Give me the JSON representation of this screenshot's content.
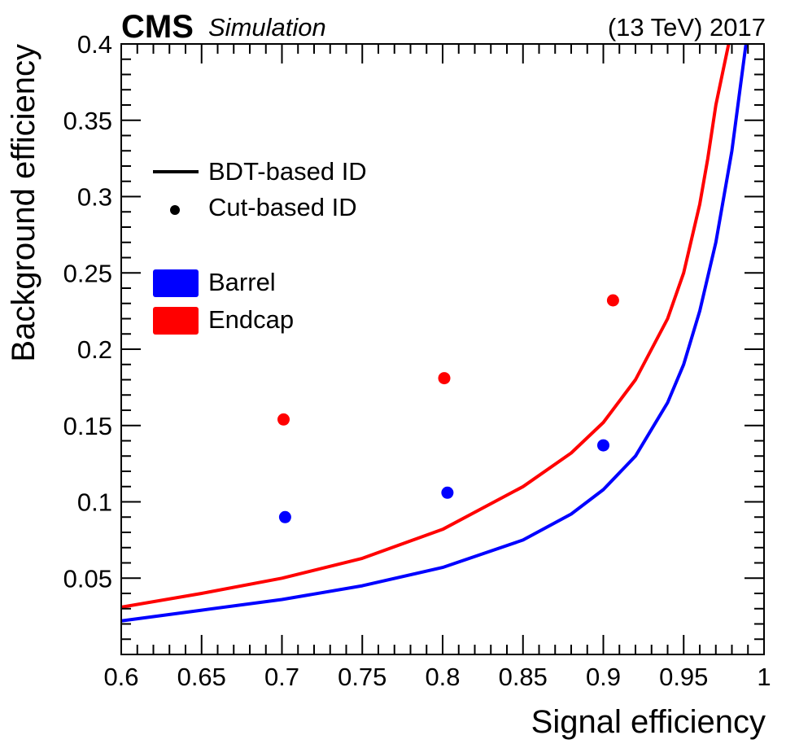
{
  "header": {
    "experiment": "CMS",
    "tag": "Simulation",
    "energy_year": "(13 TeV) 2017"
  },
  "legend": {
    "line_label": "BDT-based ID",
    "marker_label": "Cut-based ID",
    "barrel_label": "Barrel",
    "endcap_label": "Endcap"
  },
  "colors": {
    "barrel": "#0000ff",
    "endcap": "#ff0000",
    "axis": "#000000"
  },
  "chart_data": {
    "type": "line",
    "xlabel": "Signal efficiency",
    "ylabel": "Background efficiency",
    "xlim": [
      0.6,
      1.0
    ],
    "ylim": [
      0.0,
      0.4
    ],
    "x_ticks": [
      0.6,
      0.65,
      0.7,
      0.75,
      0.8,
      0.85,
      0.9,
      0.95,
      1.0
    ],
    "x_tick_labels": [
      "0.6",
      "0.65",
      "0.7",
      "0.75",
      "0.8",
      "0.85",
      "0.9",
      "0.95",
      "1"
    ],
    "y_ticks": [
      0.05,
      0.1,
      0.15,
      0.2,
      0.25,
      0.3,
      0.35,
      0.4
    ],
    "y_tick_labels": [
      "0.05",
      "0.1",
      "0.15",
      "0.2",
      "0.25",
      "0.3",
      "0.35",
      "0.4"
    ],
    "legend_position": "top-left",
    "grid": false,
    "series": [
      {
        "name": "BDT-based ID",
        "region": "Barrel",
        "kind": "curve",
        "x": [
          0.6,
          0.65,
          0.7,
          0.75,
          0.8,
          0.85,
          0.88,
          0.9,
          0.92,
          0.94,
          0.95,
          0.96,
          0.97,
          0.98,
          0.985,
          0.99
        ],
        "y": [
          0.022,
          0.029,
          0.036,
          0.045,
          0.057,
          0.075,
          0.092,
          0.108,
          0.13,
          0.165,
          0.19,
          0.225,
          0.27,
          0.33,
          0.37,
          0.41
        ]
      },
      {
        "name": "BDT-based ID",
        "region": "Endcap",
        "kind": "curve",
        "x": [
          0.6,
          0.65,
          0.7,
          0.75,
          0.8,
          0.85,
          0.88,
          0.9,
          0.92,
          0.94,
          0.95,
          0.96,
          0.965,
          0.97,
          0.975,
          0.98
        ],
        "y": [
          0.031,
          0.04,
          0.05,
          0.063,
          0.082,
          0.11,
          0.132,
          0.152,
          0.18,
          0.22,
          0.25,
          0.295,
          0.325,
          0.36,
          0.385,
          0.41
        ]
      },
      {
        "name": "Cut-based ID",
        "region": "Barrel",
        "kind": "points",
        "x": [
          0.702,
          0.803,
          0.9
        ],
        "y": [
          0.09,
          0.106,
          0.137
        ]
      },
      {
        "name": "Cut-based ID",
        "region": "Endcap",
        "kind": "points",
        "x": [
          0.701,
          0.801,
          0.906
        ],
        "y": [
          0.154,
          0.181,
          0.232
        ]
      }
    ]
  }
}
